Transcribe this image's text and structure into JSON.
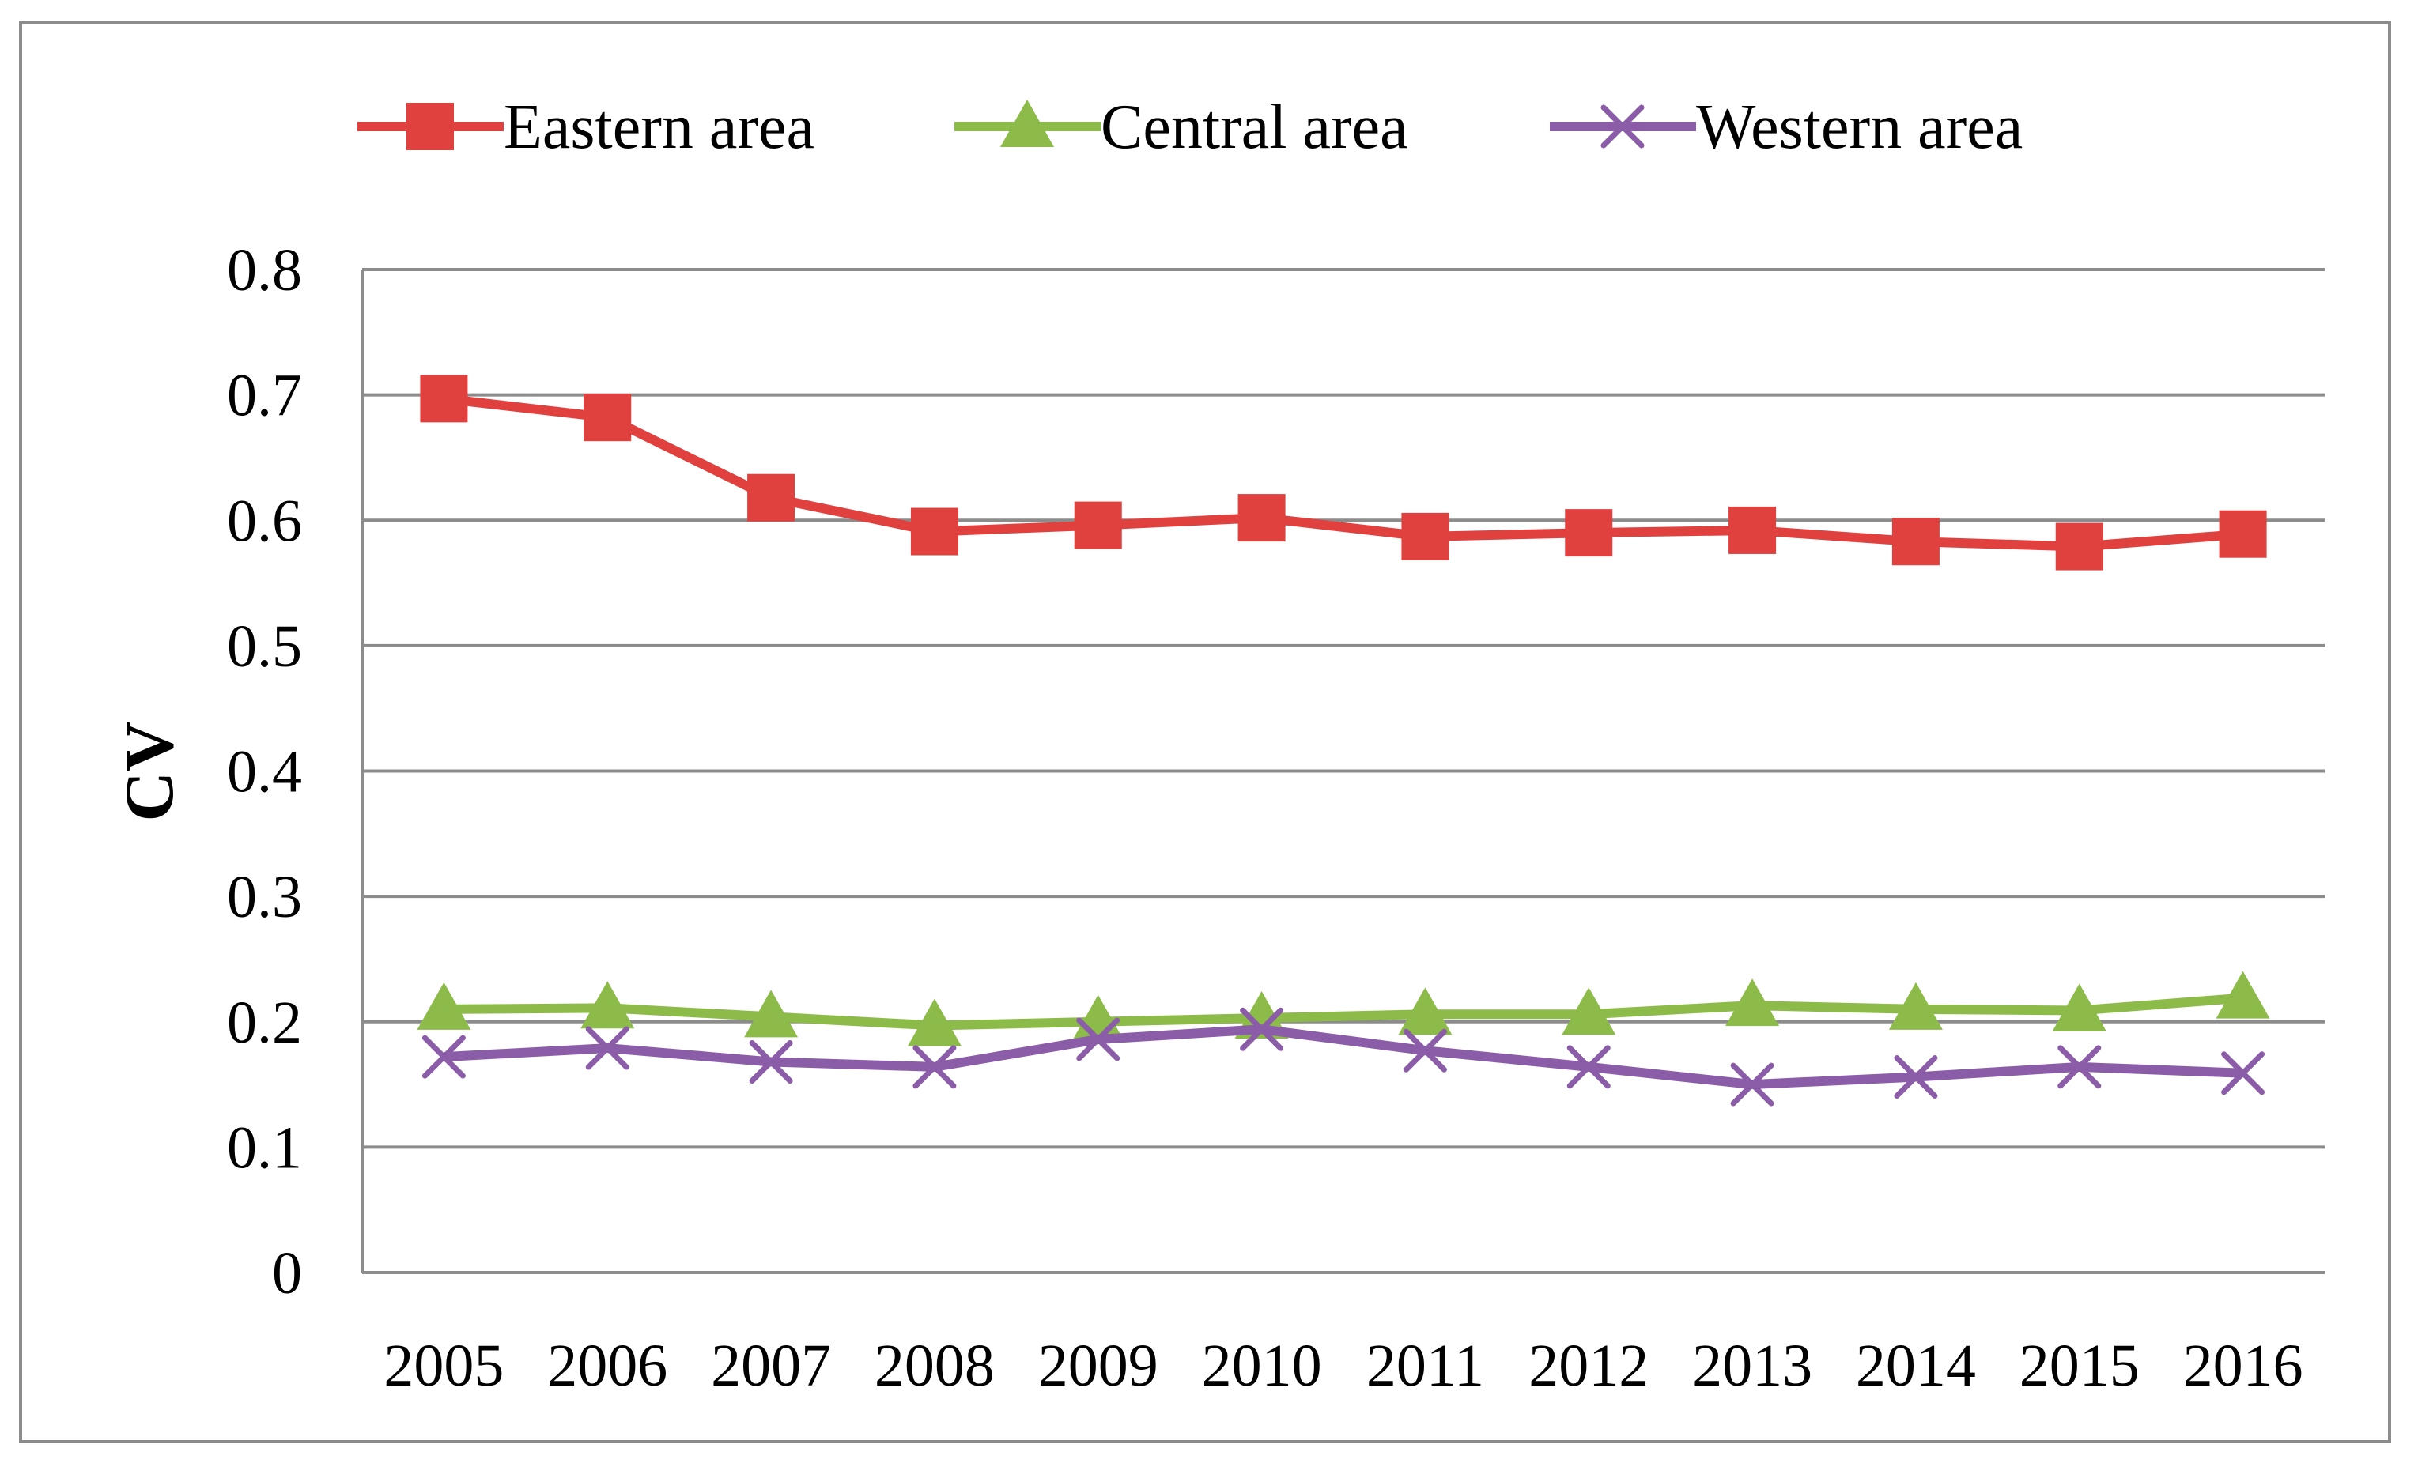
{
  "chart_data": {
    "type": "line",
    "title": "",
    "xlabel": "",
    "ylabel": "CV",
    "ylim": [
      0,
      0.8
    ],
    "y_ticks": [
      "0",
      "0.1",
      "0.2",
      "0.3",
      "0.4",
      "0.5",
      "0.6",
      "0.7",
      "0.8"
    ],
    "grid": true,
    "legend_position": "top",
    "categories": [
      "2005",
      "2006",
      "2007",
      "2008",
      "2009",
      "2010",
      "2011",
      "2012",
      "2013",
      "2014",
      "2015",
      "2016"
    ],
    "series": [
      {
        "name": "Eastern area",
        "color": "#E0413F",
        "marker": "square",
        "values": [
          0.697,
          0.682,
          0.618,
          0.591,
          0.596,
          0.602,
          0.587,
          0.59,
          0.592,
          0.583,
          0.579,
          0.589
        ]
      },
      {
        "name": "Central area",
        "color": "#8DBB4A",
        "marker": "triangle",
        "values": [
          0.21,
          0.211,
          0.204,
          0.197,
          0.2,
          0.203,
          0.206,
          0.206,
          0.213,
          0.21,
          0.209,
          0.219
        ]
      },
      {
        "name": "Western area",
        "color": "#8B5DA9",
        "marker": "x",
        "values": [
          0.172,
          0.179,
          0.168,
          0.164,
          0.186,
          0.194,
          0.177,
          0.164,
          0.15,
          0.156,
          0.164,
          0.159
        ]
      }
    ]
  }
}
